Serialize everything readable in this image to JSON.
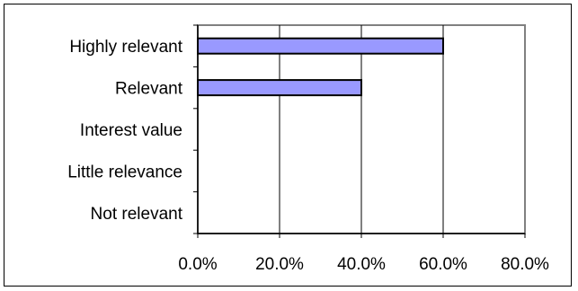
{
  "chart_data": {
    "type": "bar",
    "orientation": "horizontal",
    "categories": [
      "Highly relevant",
      "Relevant",
      "Interest value",
      "Little relevance",
      "Not relevant"
    ],
    "values": [
      60.0,
      40.0,
      0.0,
      0.0,
      0.0
    ],
    "xlim": [
      0,
      80
    ],
    "xticks": [
      0,
      20,
      40,
      60,
      80
    ],
    "xtick_labels": [
      "0.0%",
      "20.0%",
      "40.0%",
      "60.0%",
      "80.0%"
    ],
    "grid": "vertical",
    "legend": "none",
    "colors": {
      "bar_fill": "#9999ff",
      "bar_stroke": "#000000",
      "plot_border": "#808080",
      "grid": "#000000"
    }
  }
}
